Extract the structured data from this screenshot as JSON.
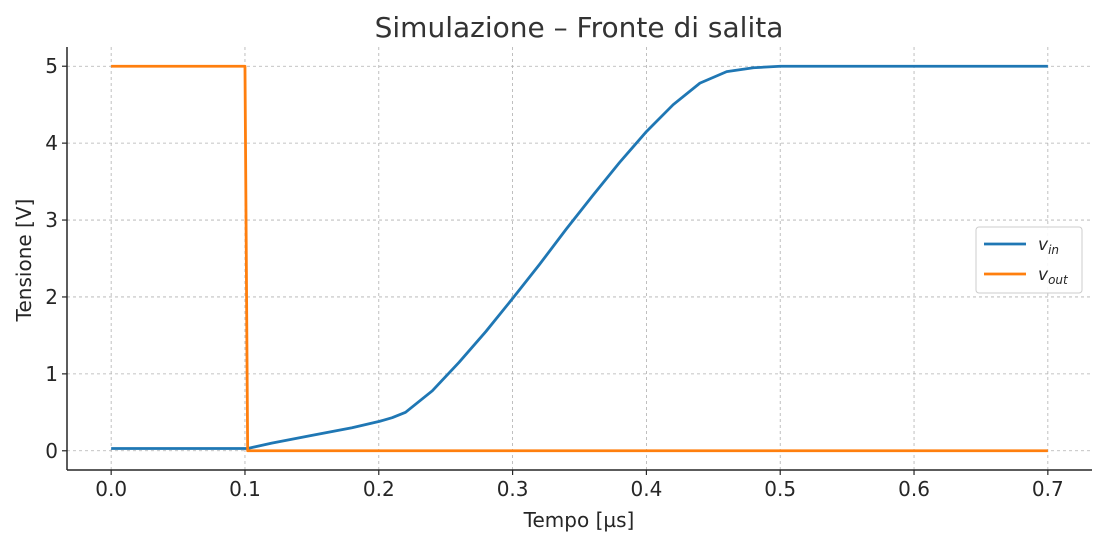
{
  "chart_data": {
    "type": "line",
    "title": "Simulazione – Fronte di salita",
    "xlabel": "Tempo [µs]",
    "ylabel": "Tensione [V]",
    "xlim": [
      -0.033,
      0.733
    ],
    "ylim": [
      -0.25,
      5.25
    ],
    "xticks": [
      0.0,
      0.1,
      0.2,
      0.3,
      0.4,
      0.5,
      0.6,
      0.7
    ],
    "xtick_labels": [
      "0.0",
      "0.1",
      "0.2",
      "0.3",
      "0.4",
      "0.5",
      "0.6",
      "0.7"
    ],
    "yticks": [
      0,
      1,
      2,
      3,
      4,
      5
    ],
    "ytick_labels": [
      "0",
      "1",
      "2",
      "3",
      "4",
      "5"
    ],
    "grid": true,
    "legend_position": "center-right",
    "series": [
      {
        "name": "v_in",
        "legend_main": "v",
        "legend_sub": "in",
        "color": "#1f77b4",
        "x": [
          0.0,
          0.1,
          0.102,
          0.12,
          0.15,
          0.18,
          0.2,
          0.21,
          0.22,
          0.24,
          0.26,
          0.28,
          0.3,
          0.32,
          0.34,
          0.36,
          0.38,
          0.4,
          0.42,
          0.44,
          0.46,
          0.48,
          0.5,
          0.55,
          0.6,
          0.65,
          0.7
        ],
        "y": [
          0.03,
          0.03,
          0.03,
          0.1,
          0.2,
          0.3,
          0.38,
          0.43,
          0.5,
          0.78,
          1.15,
          1.55,
          1.98,
          2.42,
          2.88,
          3.32,
          3.75,
          4.15,
          4.5,
          4.78,
          4.93,
          4.98,
          5.0,
          5.0,
          5.0,
          5.0,
          5.0
        ]
      },
      {
        "name": "v_out",
        "legend_main": "v",
        "legend_sub": "out",
        "color": "#ff7f0e",
        "x": [
          0.0,
          0.1,
          0.101,
          0.102,
          0.7
        ],
        "y": [
          5.0,
          5.0,
          2.5,
          0.0,
          0.0
        ]
      }
    ]
  }
}
